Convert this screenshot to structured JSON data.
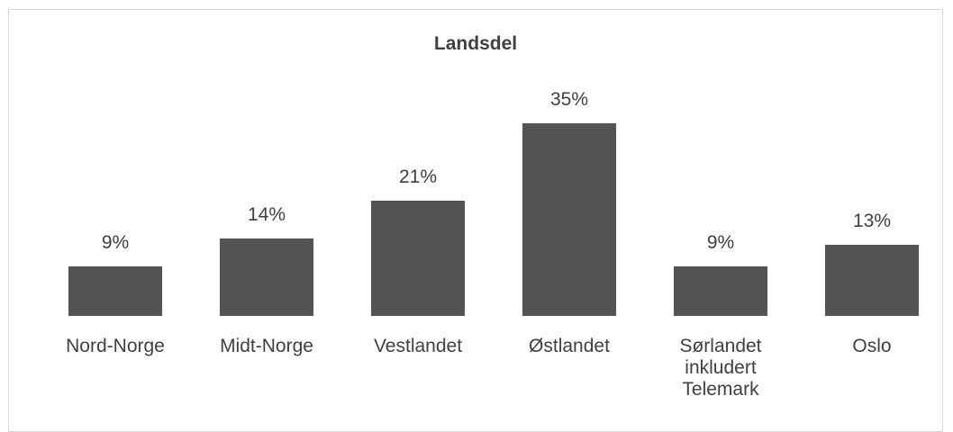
{
  "chart_data": {
    "type": "bar",
    "title": "Landsdel",
    "categories": [
      "Nord-Norge",
      "Midt-Norge",
      "Vestlandet",
      "Østlandet",
      "Sørlandet inkludert Telemark",
      "Oslo"
    ],
    "values": [
      9,
      14,
      21,
      35,
      9,
      13
    ],
    "value_labels": [
      "9%",
      "14%",
      "21%",
      "35%",
      "9%",
      "13%"
    ],
    "color": "#525451"
  }
}
